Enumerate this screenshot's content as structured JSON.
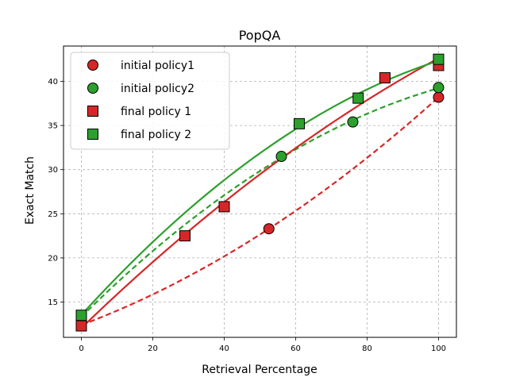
{
  "chart_data": {
    "type": "scatter",
    "title": "PopQA",
    "xlabel": "Retrieval Percentage",
    "ylabel": "Exact Match",
    "xlim": [
      -5,
      105
    ],
    "ylim": [
      11,
      44
    ],
    "xticks": [
      0,
      20,
      40,
      60,
      80,
      100
    ],
    "yticks": [
      15,
      20,
      25,
      30,
      35,
      40
    ],
    "grid": true,
    "legend_position": "top-left",
    "series": [
      {
        "name": "initial policy1",
        "marker": "circle",
        "color": "#d62728",
        "points": [
          [
            0,
            12.4
          ],
          [
            52.5,
            23.3
          ],
          [
            100,
            38.2
          ]
        ],
        "fit_line": "dashed"
      },
      {
        "name": "initial policy2",
        "marker": "circle",
        "color": "#2ca02c",
        "points": [
          [
            0,
            13.3
          ],
          [
            56,
            31.5
          ],
          [
            76,
            35.4
          ],
          [
            100,
            39.3
          ]
        ],
        "fit_line": "dashed"
      },
      {
        "name": "final policy 1",
        "marker": "square",
        "color": "#d62728",
        "points": [
          [
            0,
            12.3
          ],
          [
            29,
            22.5
          ],
          [
            40,
            25.8
          ],
          [
            85,
            40.4
          ],
          [
            100,
            41.8
          ]
        ],
        "fit_line": "solid"
      },
      {
        "name": "final policy 2",
        "marker": "square",
        "color": "#2ca02c",
        "points": [
          [
            0,
            13.5
          ],
          [
            61,
            35.2
          ],
          [
            77.5,
            38.1
          ],
          [
            100,
            42.5
          ]
        ],
        "fit_line": "solid"
      }
    ]
  }
}
